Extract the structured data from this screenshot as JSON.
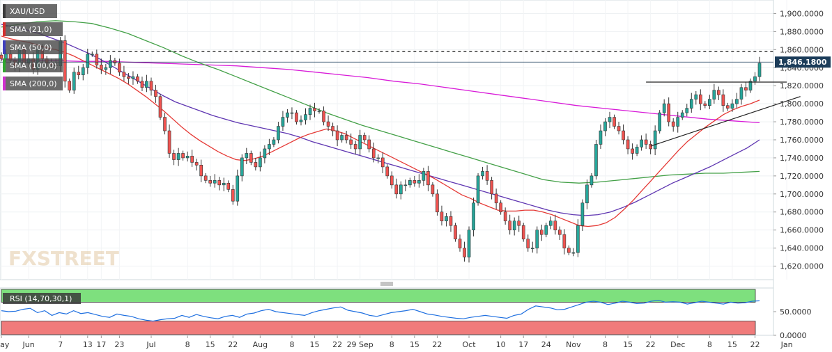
{
  "chart_data": {
    "type": "candlestick",
    "symbol": "XAU/USD",
    "last_price_label": "1,846.1800",
    "main_ylim": [
      1605,
      1915
    ],
    "y_ticks": [
      "1,900.0000",
      "1,880.0000",
      "1,860.0000",
      "1,840.0000",
      "1,820.0000",
      "1,800.0000",
      "1,780.0000",
      "1,760.0000",
      "1,740.0000",
      "1,720.0000",
      "1,700.0000",
      "1,680.0000",
      "1,660.0000",
      "1,640.0000",
      "1,620.0000"
    ],
    "y_tick_values": [
      1900,
      1880,
      1860,
      1840,
      1820,
      1800,
      1780,
      1760,
      1740,
      1720,
      1700,
      1680,
      1660,
      1640,
      1620
    ],
    "x_labels": [
      "May",
      "Jun",
      "7",
      "13",
      "17",
      "23",
      "Jul",
      "8",
      "15",
      "22",
      "Aug",
      "8",
      "15",
      "22",
      "29 Sep",
      "8",
      "15",
      "22",
      "Oct",
      "10",
      "17",
      "24",
      "Nov",
      "8",
      "15",
      "22",
      "Dec",
      "8",
      "15",
      "22",
      "Jan"
    ],
    "x_label_index": [
      0,
      6,
      13,
      19,
      22,
      26,
      33,
      41,
      46,
      51,
      57,
      64,
      69,
      74,
      79,
      86,
      91,
      96,
      103,
      110,
      115,
      120,
      126,
      133,
      138,
      143,
      149,
      156,
      161,
      166,
      173
    ],
    "legend": [
      {
        "label": "XAU/USD",
        "color": "#3a3a3a"
      },
      {
        "label": "SMA (21,0)",
        "color": "#d32f2f"
      },
      {
        "label": "SMA (50,0)",
        "color": "#3f3fbf"
      },
      {
        "label": "SMA (100,0)",
        "color": "#2fa82f"
      },
      {
        "label": "SMA (200,0)",
        "color": "#d02fd0"
      }
    ],
    "resistance_level": 1858,
    "horizontal_line": {
      "x_from_index": 142,
      "x_to_index": 173,
      "y": 1824
    },
    "trendline": {
      "from": [
        143,
        1753
      ],
      "to": [
        176,
        1808
      ]
    },
    "closes": [
      1850,
      1855,
      1848,
      1842,
      1862,
      1845,
      1850,
      1838,
      1860,
      1850,
      1845,
      1843,
      1842,
      1870,
      1825,
      1815,
      1835,
      1832,
      1840,
      1855,
      1855,
      1843,
      1838,
      1840,
      1848,
      1845,
      1835,
      1830,
      1828,
      1830,
      1825,
      1818,
      1825,
      1815,
      1808,
      1785,
      1770,
      1745,
      1738,
      1745,
      1740,
      1742,
      1735,
      1732,
      1720,
      1715,
      1712,
      1715,
      1710,
      1712,
      1705,
      1692,
      1720,
      1740,
      1745,
      1735,
      1730,
      1740,
      1750,
      1755,
      1760,
      1775,
      1785,
      1790,
      1790,
      1780,
      1782,
      1788,
      1795,
      1792,
      1792,
      1780,
      1775,
      1770,
      1760,
      1765,
      1760,
      1755,
      1750,
      1765,
      1760,
      1750,
      1740,
      1740,
      1730,
      1720,
      1710,
      1700,
      1710,
      1710,
      1715,
      1712,
      1715,
      1725,
      1710,
      1700,
      1680,
      1670,
      1675,
      1665,
      1650,
      1640,
      1630,
      1660,
      1690,
      1720,
      1725,
      1715,
      1700,
      1690,
      1680,
      1670,
      1660,
      1670,
      1665,
      1650,
      1640,
      1640,
      1660,
      1655,
      1665,
      1670,
      1660,
      1655,
      1640,
      1635,
      1635,
      1665,
      1690,
      1710,
      1720,
      1755,
      1770,
      1780,
      1785,
      1775,
      1770,
      1760,
      1750,
      1745,
      1752,
      1760,
      1755,
      1750,
      1770,
      1790,
      1800,
      1780,
      1775,
      1785,
      1790,
      1795,
      1805,
      1810,
      1800,
      1798,
      1805,
      1815,
      1810,
      1798,
      1795,
      1800,
      1805,
      1818,
      1815,
      1825,
      1830,
      1845
    ],
    "sma21": [
      1875,
      1872,
      1870,
      1868,
      1865,
      1862,
      1860,
      1857,
      1853,
      1848,
      1843,
      1838,
      1833,
      1828,
      1822,
      1815,
      1808,
      1800,
      1792,
      1783,
      1774,
      1766,
      1759,
      1753,
      1747,
      1742,
      1738,
      1737,
      1739,
      1742,
      1747,
      1752,
      1757,
      1762,
      1766,
      1769,
      1772,
      1770,
      1767,
      1762,
      1757,
      1752,
      1747,
      1742,
      1737,
      1732,
      1727,
      1722,
      1717,
      1711,
      1705,
      1699,
      1695,
      1690,
      1686,
      1682,
      1681,
      1681,
      1682,
      1682,
      1680,
      1677,
      1673,
      1669,
      1665,
      1664,
      1665,
      1668,
      1674,
      1683,
      1693,
      1704,
      1715,
      1726,
      1737,
      1748,
      1758,
      1766,
      1774,
      1781,
      1788,
      1793,
      1797,
      1800,
      1804
    ],
    "sma50": [
      1888,
      1885,
      1882,
      1878,
      1873,
      1868,
      1862,
      1856,
      1849,
      1841,
      1833,
      1825,
      1817,
      1809,
      1802,
      1797,
      1792,
      1787,
      1783,
      1779,
      1776,
      1773,
      1770,
      1767,
      1763,
      1758,
      1754,
      1750,
      1746,
      1742,
      1738,
      1734,
      1730,
      1726,
      1722,
      1718,
      1714,
      1710,
      1706,
      1702,
      1698,
      1694,
      1690,
      1686,
      1682,
      1679,
      1677,
      1676,
      1677,
      1680,
      1685,
      1691,
      1698,
      1705,
      1712,
      1718,
      1724,
      1730,
      1737,
      1744,
      1751,
      1760
    ],
    "sma100": [
      1885,
      1888,
      1891,
      1892,
      1891,
      1889,
      1884,
      1878,
      1870,
      1862,
      1853,
      1845,
      1838,
      1830,
      1822,
      1814,
      1806,
      1798,
      1790,
      1783,
      1776,
      1770,
      1764,
      1758,
      1752,
      1746,
      1740,
      1734,
      1728,
      1722,
      1716,
      1713,
      1712,
      1713,
      1715,
      1717,
      1719,
      1721,
      1722,
      1723,
      1723,
      1724,
      1725
    ],
    "sma200": [
      1849,
      1848,
      1848,
      1847,
      1847,
      1846,
      1845,
      1844,
      1843,
      1842,
      1840,
      1838,
      1835,
      1832,
      1829,
      1825,
      1822,
      1818,
      1814,
      1810,
      1806,
      1802,
      1798,
      1795,
      1792,
      1789,
      1786,
      1783,
      1781,
      1779
    ],
    "rsi": {
      "label": "RSI (14,70,30,1)",
      "ylim": [
        0,
        100
      ],
      "ticks": [
        "50.0000",
        "0.0000"
      ],
      "tick_values": [
        50,
        0
      ],
      "overbought": 70,
      "oversold": 30,
      "values": [
        52,
        50,
        51,
        55,
        57,
        48,
        52,
        42,
        48,
        45,
        52,
        46,
        48,
        44,
        40,
        38,
        45,
        42,
        40,
        35,
        32,
        30,
        33,
        35,
        36,
        42,
        38,
        44,
        40,
        37,
        35,
        40,
        42,
        38,
        45,
        47,
        52,
        55,
        50,
        48,
        46,
        44,
        42,
        48,
        52,
        55,
        58,
        60,
        53,
        50,
        47,
        42,
        40,
        44,
        48,
        50,
        52,
        55,
        50,
        45,
        43,
        40,
        38,
        36,
        35,
        38,
        40,
        42,
        40,
        38,
        36,
        42,
        45,
        55,
        62,
        60,
        58,
        54,
        55,
        60,
        65,
        70,
        72,
        70,
        65,
        68,
        72,
        70,
        67,
        68,
        72,
        74,
        70,
        71,
        70,
        66,
        69,
        72,
        70,
        68,
        66,
        70,
        68,
        69,
        72,
        73
      ]
    },
    "colors": {
      "up": "#26a69a",
      "down": "#ef5350",
      "sma21": "#e53935",
      "sma50": "#5e35b1",
      "sma100": "#43a047",
      "sma200": "#d81bd8",
      "rsi_line": "#1e6fe0",
      "rsi_band_upper": "#7ee07e",
      "rsi_band_lower": "#f07b7b",
      "resistance": "#222222",
      "last_price_tag": "#1c3d5a"
    }
  },
  "watermark": "FXSTREET"
}
